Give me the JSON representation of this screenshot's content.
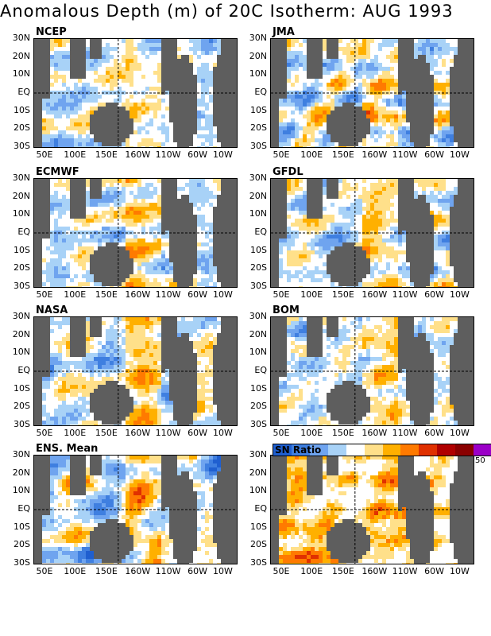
{
  "title": "Anomalous Depth (m) of 20C Isotherm: AUG 1993",
  "lat_labels": [
    "30N",
    "20N",
    "10N",
    "EQ",
    "10S",
    "20S",
    "30S"
  ],
  "lon_labels": [
    "50E",
    "100E",
    "150E",
    "160W",
    "110W",
    "60W",
    "10W"
  ],
  "panels": [
    {
      "name": "NCEP",
      "style": "anomaly"
    },
    {
      "name": "JMA",
      "style": "anomaly"
    },
    {
      "name": "ECMWF",
      "style": "anomaly"
    },
    {
      "name": "GFDL",
      "style": "anomaly"
    },
    {
      "name": "NASA",
      "style": "anomaly"
    },
    {
      "name": "BOM",
      "style": "anomaly"
    },
    {
      "name": "ENS. Mean",
      "style": "anomaly"
    },
    {
      "name": "",
      "style": "ratio"
    }
  ],
  "legend": {
    "label": "SN Ratio",
    "max_label": "50",
    "colors": [
      "#1f5fd0",
      "#3f7fe0",
      "#6fa4ef",
      "#a8d2f7",
      "#ffffff",
      "#ffe08a",
      "#ffb000",
      "#ff7a00",
      "#e03000",
      "#b00000",
      "#8a0000",
      "#9b00c8"
    ]
  },
  "colors": {
    "land": "#5e5e5e",
    "anomaly_palette": [
      "#1f5fd0",
      "#3f7fe0",
      "#6fa4ef",
      "#a8d2f7",
      "#ffffff",
      "#ffe08a",
      "#ffb000",
      "#ff7a00",
      "#e03000",
      "#b00000",
      "#9b00c8"
    ],
    "ratio_palette": [
      "#ffffff",
      "#ffe08a",
      "#ffb000",
      "#ff7a00",
      "#e03000",
      "#b00000",
      "#8a0000",
      "#9b00c8"
    ]
  }
}
